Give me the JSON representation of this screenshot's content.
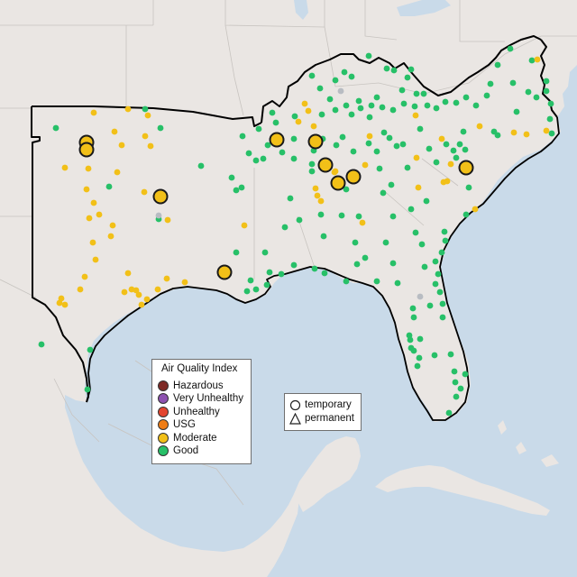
{
  "map": {
    "colors": {
      "water": "#c9dae9",
      "land": "#eae6e3",
      "land_border": "#c8c4c0",
      "region_outline": "#000000",
      "station_outline": "#222222"
    },
    "legend_aqi": {
      "title": "Air Quality Index",
      "items": [
        {
          "label": "Hazardous",
          "color": "#7e2a26"
        },
        {
          "label": "Very Unhealthy",
          "color": "#8d52b0"
        },
        {
          "label": "Unhealthy",
          "color": "#e3452f"
        },
        {
          "label": "USG",
          "color": "#ef7d16"
        },
        {
          "label": "Moderate",
          "color": "#f2c018"
        },
        {
          "label": "Good",
          "color": "#27c068"
        }
      ]
    },
    "legend_station": {
      "items": [
        {
          "label": "temporary",
          "shape": "circle-icon"
        },
        {
          "label": "permanent",
          "shape": "triangle-icon"
        }
      ]
    },
    "stations": {
      "aqi_levels": [
        "moderate",
        "good",
        "unavailable"
      ],
      "monitor_type": "temporary"
    }
  }
}
